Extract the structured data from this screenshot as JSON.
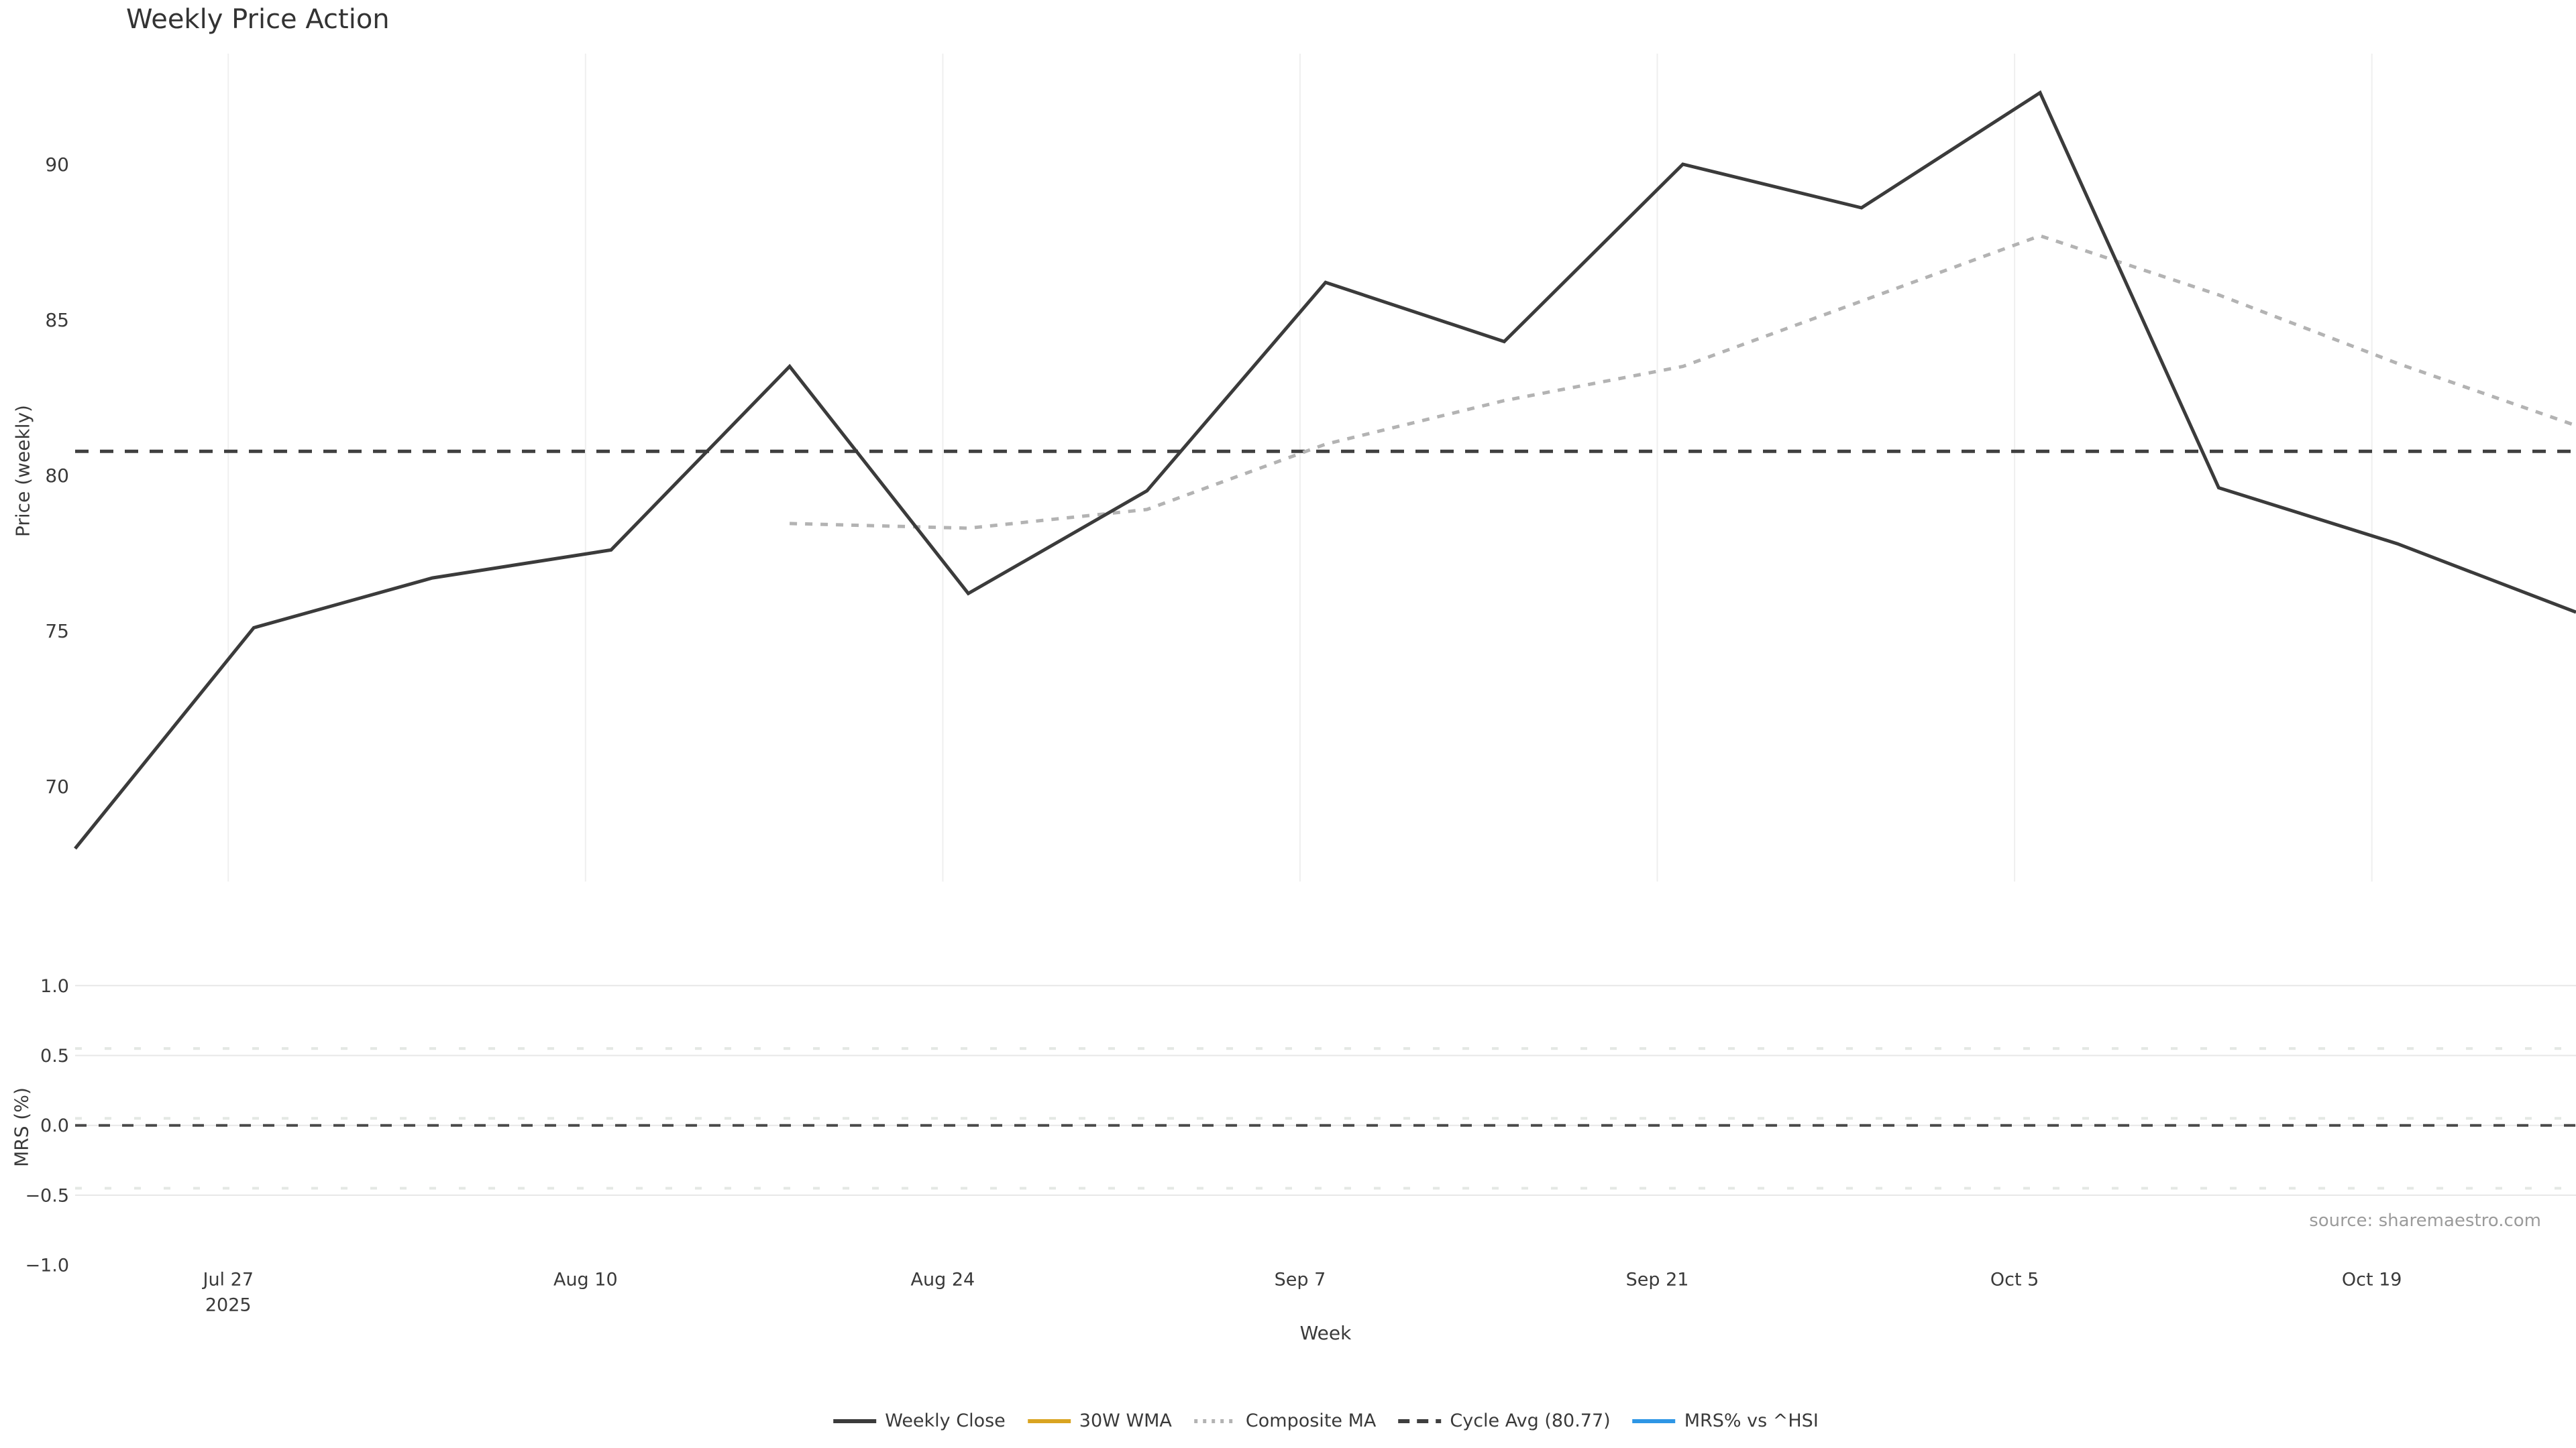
{
  "title": "Weekly Price Action",
  "xlabel": "Week",
  "source_note": "source: sharemaestro.com",
  "colors": {
    "background": "#ffffff",
    "weekly_close": "#3b3b3b",
    "wma_30w": "#d9a421",
    "composite_ma": "#b3b3b3",
    "cycle_avg": "#3f3f3f",
    "mrs_blue": "#2e96e5",
    "gridline": "#efefef",
    "mrs_gridline": "#e7e7e7",
    "tick_text": "#3a3a3a",
    "source_text": "#9b9b9b"
  },
  "chart_data": [
    {
      "type": "line",
      "panel": "price",
      "ylabel": "Price (weekly)",
      "yticks": [
        90,
        85,
        80,
        75,
        70
      ],
      "ylim": [
        66.9,
        93.6
      ],
      "grid": "vertical-only",
      "x_dates": [
        "Jul 21",
        "Jul 28",
        "Aug 4",
        "Aug 11",
        "Aug 18",
        "Aug 25",
        "Sep 1",
        "Sep 8",
        "Sep 15",
        "Sep 22",
        "Sep 29",
        "Oct 6",
        "Oct 13",
        "Oct 20",
        "Oct 27"
      ],
      "xticks": [
        {
          "day": 6,
          "label": "Jul 27",
          "sub": "2025"
        },
        {
          "day": 20,
          "label": "Aug 10"
        },
        {
          "day": 34,
          "label": "Aug 24"
        },
        {
          "day": 48,
          "label": "Sep 7"
        },
        {
          "day": 62,
          "label": "Sep 21"
        },
        {
          "day": 76,
          "label": "Oct 5"
        },
        {
          "day": 90,
          "label": "Oct 19"
        }
      ],
      "series": [
        {
          "name": "Weekly Close",
          "style": "solid",
          "color": "#3b3b3b",
          "width": 5,
          "values": [
            68.0,
            75.1,
            76.7,
            77.6,
            83.5,
            76.2,
            79.5,
            86.2,
            84.3,
            90.0,
            88.6,
            92.3,
            79.6,
            77.8,
            75.6
          ]
        },
        {
          "name": "30W WMA",
          "style": "solid",
          "color": "#d9a421",
          "width": 5,
          "values": [
            null,
            null,
            null,
            null,
            null,
            null,
            null,
            null,
            null,
            null,
            null,
            null,
            null,
            null,
            null
          ]
        },
        {
          "name": "Composite MA",
          "style": "dotted",
          "color": "#b3b3b3",
          "width": 5,
          "values": [
            null,
            null,
            null,
            null,
            78.45,
            78.3,
            78.9,
            81.0,
            82.4,
            83.5,
            85.6,
            87.7,
            85.8,
            83.6,
            81.6
          ]
        },
        {
          "name": "Cycle Avg (80.77)",
          "style": "dashed",
          "color": "#3f3f3f",
          "width": 5,
          "constant": 80.77
        }
      ]
    },
    {
      "type": "line",
      "panel": "mrs",
      "ylabel": "MRS (%)",
      "ytick_labels": [
        "1.0",
        "0.5",
        "0.0",
        "−0.5",
        "−1.0"
      ],
      "ytick_values": [
        1.0,
        0.5,
        0.0,
        -0.5,
        -1.0
      ],
      "ylim": [
        -1.17,
        1.17
      ],
      "gridline_values": [
        1.0,
        0.5,
        0.0,
        -0.5
      ],
      "zero_line": 0.0,
      "threshold_dotted": [
        0.55,
        0.05,
        -0.45
      ],
      "series": [
        {
          "name": "MRS% vs ^HSI",
          "style": "solid",
          "color": "#2e96e5",
          "width": 5,
          "values": []
        }
      ]
    }
  ],
  "legend": [
    {
      "label": "Weekly Close",
      "color": "#3b3b3b",
      "style": "solid"
    },
    {
      "label": "30W WMA",
      "color": "#d9a421",
      "style": "solid"
    },
    {
      "label": "Composite MA",
      "color": "#b3b3b3",
      "style": "dotted"
    },
    {
      "label": "Cycle Avg (80.77)",
      "color": "#3f3f3f",
      "style": "dashed"
    },
    {
      "label": "MRS% vs ^HSI",
      "color": "#2e96e5",
      "style": "solid"
    }
  ]
}
